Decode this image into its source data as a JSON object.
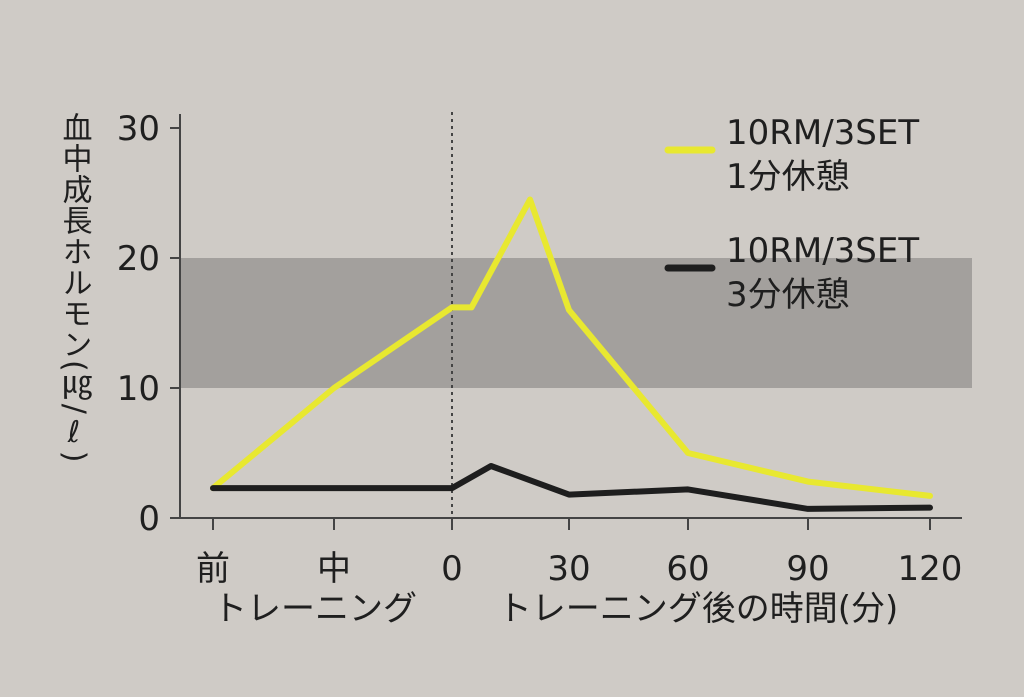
{
  "chart_data": {
    "type": "line",
    "ylabel": "血中成長ホルモン(㎍/ℓ)",
    "xlabel_left": "トレーニング",
    "xlabel_right": "トレーニング後の時間(分)",
    "ylim": [
      0,
      30
    ],
    "yticks": [
      "0",
      "10",
      "20",
      "30"
    ],
    "x_ticks": [
      {
        "label": "前",
        "x": -90
      },
      {
        "label": "中",
        "x": -45
      },
      {
        "label": "0",
        "x": 0
      },
      {
        "label": "30",
        "x": 30
      },
      {
        "label": "60",
        "x": 60
      },
      {
        "label": "90",
        "x": 90
      },
      {
        "label": "120",
        "x": 120
      }
    ],
    "reference_band": {
      "from": 10,
      "to": 20
    },
    "divider_x": 0,
    "series": [
      {
        "name": "10RM/3SET 1分休憩",
        "legend_line1": "10RM/3SET",
        "legend_line2": "1分休憩",
        "color": "#e8e830",
        "points": [
          [
            -90,
            2.3
          ],
          [
            -45,
            10
          ],
          [
            0,
            16.2
          ],
          [
            5,
            16.2
          ],
          [
            20,
            24.5
          ],
          [
            30,
            16
          ],
          [
            60,
            5
          ],
          [
            90,
            2.8
          ],
          [
            120,
            1.7
          ]
        ]
      },
      {
        "name": "10RM/3SET 3分休憩",
        "legend_line1": "10RM/3SET",
        "legend_line2": "3分休憩",
        "color": "#1e1e1e",
        "points": [
          [
            -90,
            2.3
          ],
          [
            0,
            2.3
          ],
          [
            10,
            4
          ],
          [
            30,
            1.8
          ],
          [
            60,
            2.2
          ],
          [
            90,
            0.7
          ],
          [
            120,
            0.8
          ]
        ]
      }
    ]
  }
}
